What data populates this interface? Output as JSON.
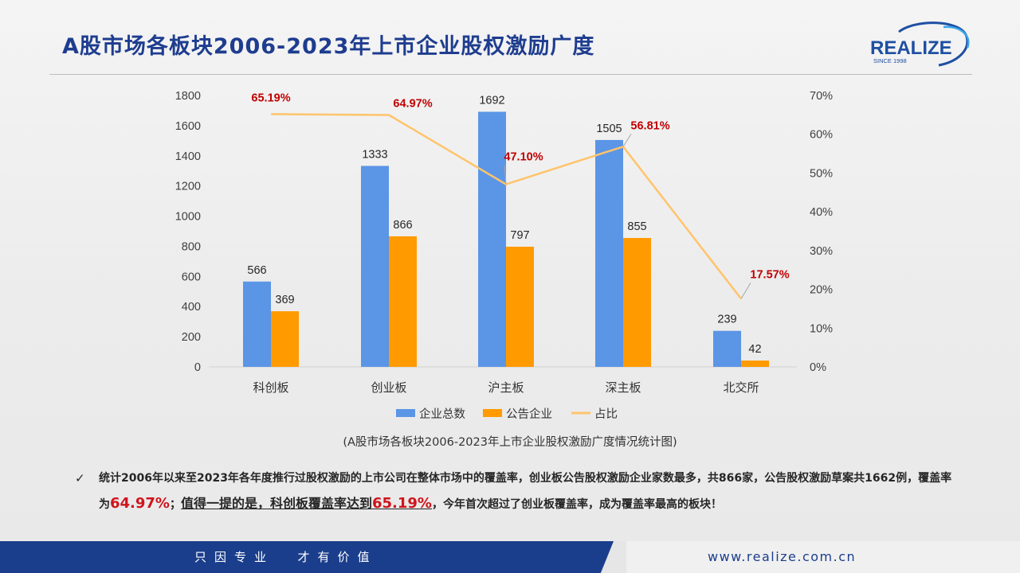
{
  "header": {
    "title": "A股市场各板块2006-2023年上市企业股权激励广度",
    "logo_text": "REALIZE",
    "logo_sub": "SINCE 1998"
  },
  "chart_data": {
    "type": "bar",
    "categories": [
      "科创板",
      "创业板",
      "沪主板",
      "深主板",
      "北交所"
    ],
    "series": [
      {
        "name": "企业总数",
        "type": "bar",
        "axis": "left",
        "values": [
          566,
          1333,
          1692,
          1505,
          239
        ],
        "color": "#5b95e6"
      },
      {
        "name": "公告企业",
        "type": "bar",
        "axis": "left",
        "values": [
          369,
          866,
          797,
          855,
          42
        ],
        "color": "#ff9a00"
      },
      {
        "name": "占比",
        "type": "line",
        "axis": "right",
        "values": [
          65.19,
          64.97,
          47.1,
          56.81,
          17.57
        ],
        "labels": [
          "65.19%",
          "64.97%",
          "47.10%",
          "56.81%",
          "17.57%"
        ],
        "color": "#ffc46b"
      }
    ],
    "ylim": [
      0,
      1800
    ],
    "yticks": [
      "0",
      "200",
      "400",
      "600",
      "800",
      "1000",
      "1200",
      "1400",
      "1600",
      "1800"
    ],
    "y2lim": [
      0,
      70
    ],
    "y2ticks": [
      "0%",
      "10%",
      "20%",
      "30%",
      "40%",
      "50%",
      "60%",
      "70%"
    ],
    "legend_position": "bottom",
    "grid": false
  },
  "caption": "(A股市场各板块2006-2023年上市企业股权激励广度情况统计图)",
  "note": {
    "check": "✓",
    "part1": "统计2006年以来至2023年各年度推行过股权激励的上市公司在整体市场中的覆盖率，创业板公告股权激励企业家数最多，共866家，公告股权激励草案共1662例，覆盖率为",
    "rate1": "64.97%",
    "sep": "；",
    "under_a": "值得一提的是，科创板覆盖率达到",
    "rate2": "65.19%",
    "part2": "，今年首次超过了创业板覆盖率，成为覆盖率最高的板块！"
  },
  "footer": {
    "slogan": "只因专业  才有价值",
    "website": "www.realize.com.cn"
  },
  "colors": {
    "title": "#1e3d8f",
    "footer": "#1b3e8c",
    "highlight": "#d0141c"
  }
}
